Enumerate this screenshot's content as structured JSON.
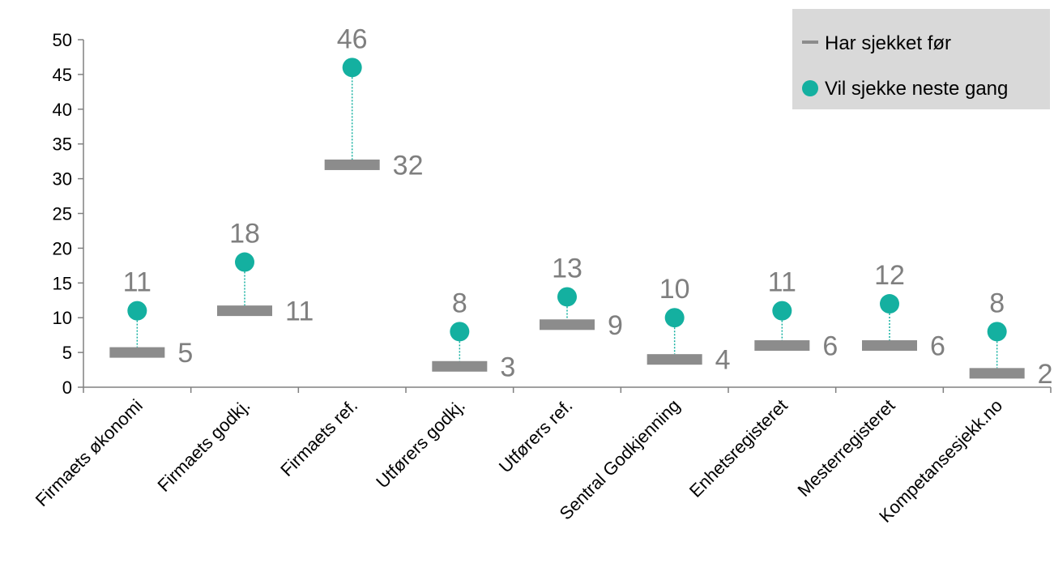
{
  "chart_data": {
    "type": "scatter",
    "title": "",
    "xlabel": "",
    "ylabel": "",
    "ylim": [
      0,
      50
    ],
    "yticks": [
      0,
      5,
      10,
      15,
      20,
      25,
      30,
      35,
      40,
      45,
      50
    ],
    "grid": false,
    "legend_position": "top-right",
    "categories": [
      "Firmaets økonomi",
      "Firmaets godkj.",
      "Firmaets ref.",
      "Utførers godkj.",
      "Utførers ref.",
      "Sentral Godkjenning",
      "Enhetsregisteret",
      "Mesterregisteret",
      "Kompetansesjekk.no"
    ],
    "series": [
      {
        "name": "Har sjekket før",
        "marker": "bar",
        "color": "#8c8c8c",
        "values": [
          5,
          11,
          32,
          3,
          9,
          4,
          6,
          6,
          2
        ]
      },
      {
        "name": "Vil sjekke neste gang",
        "marker": "circle",
        "color": "#14b0a0",
        "values": [
          11,
          18,
          46,
          8,
          13,
          10,
          11,
          12,
          8
        ]
      }
    ],
    "connector_color": "#14b0a0",
    "label_color": "#7f7f7f",
    "legend_background": "#d9d9d9"
  }
}
